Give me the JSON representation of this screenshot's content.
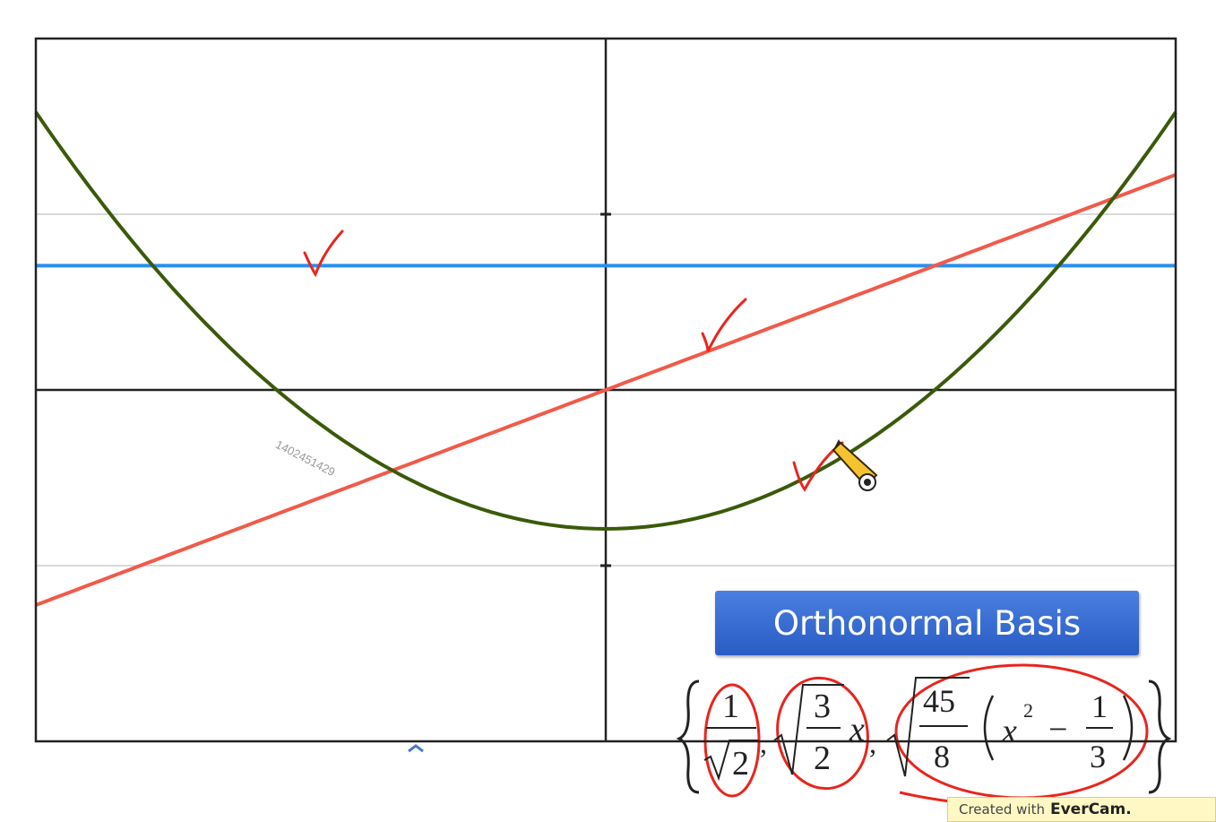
{
  "chart_data": {
    "type": "line",
    "title": "",
    "xlabel": "",
    "ylabel": "",
    "xlim": [
      -1,
      1
    ],
    "ylim": [
      -2,
      2
    ],
    "grid": true,
    "series": [
      {
        "kind": "constant",
        "coefficients": [
          0.7071
        ],
        "color": "#2a8ff0"
      },
      {
        "kind": "linear",
        "coefficients": [
          0,
          1.2247
        ],
        "color": "#f05a4a"
      },
      {
        "kind": "quadratic",
        "coefficients": [
          -0.7906,
          0,
          2.3717
        ],
        "color": "#3a5a0a"
      }
    ]
  },
  "banner": {
    "label": "Orthonormal Basis",
    "color": "#3a6fd8"
  },
  "formula": {
    "one": "1",
    "sqrt_two": "2",
    "three": "3",
    "two": "2",
    "x": "x",
    "forty_five": "45",
    "eight": "8",
    "x2": "x",
    "exp": "2",
    "minus": "−",
    "third_num": "1",
    "third_den": "3",
    "comma": ","
  },
  "watermark": "1402451429",
  "footer": {
    "prefix": "Created with",
    "brand": "EverCam."
  },
  "annotation_color": "#e8251e"
}
